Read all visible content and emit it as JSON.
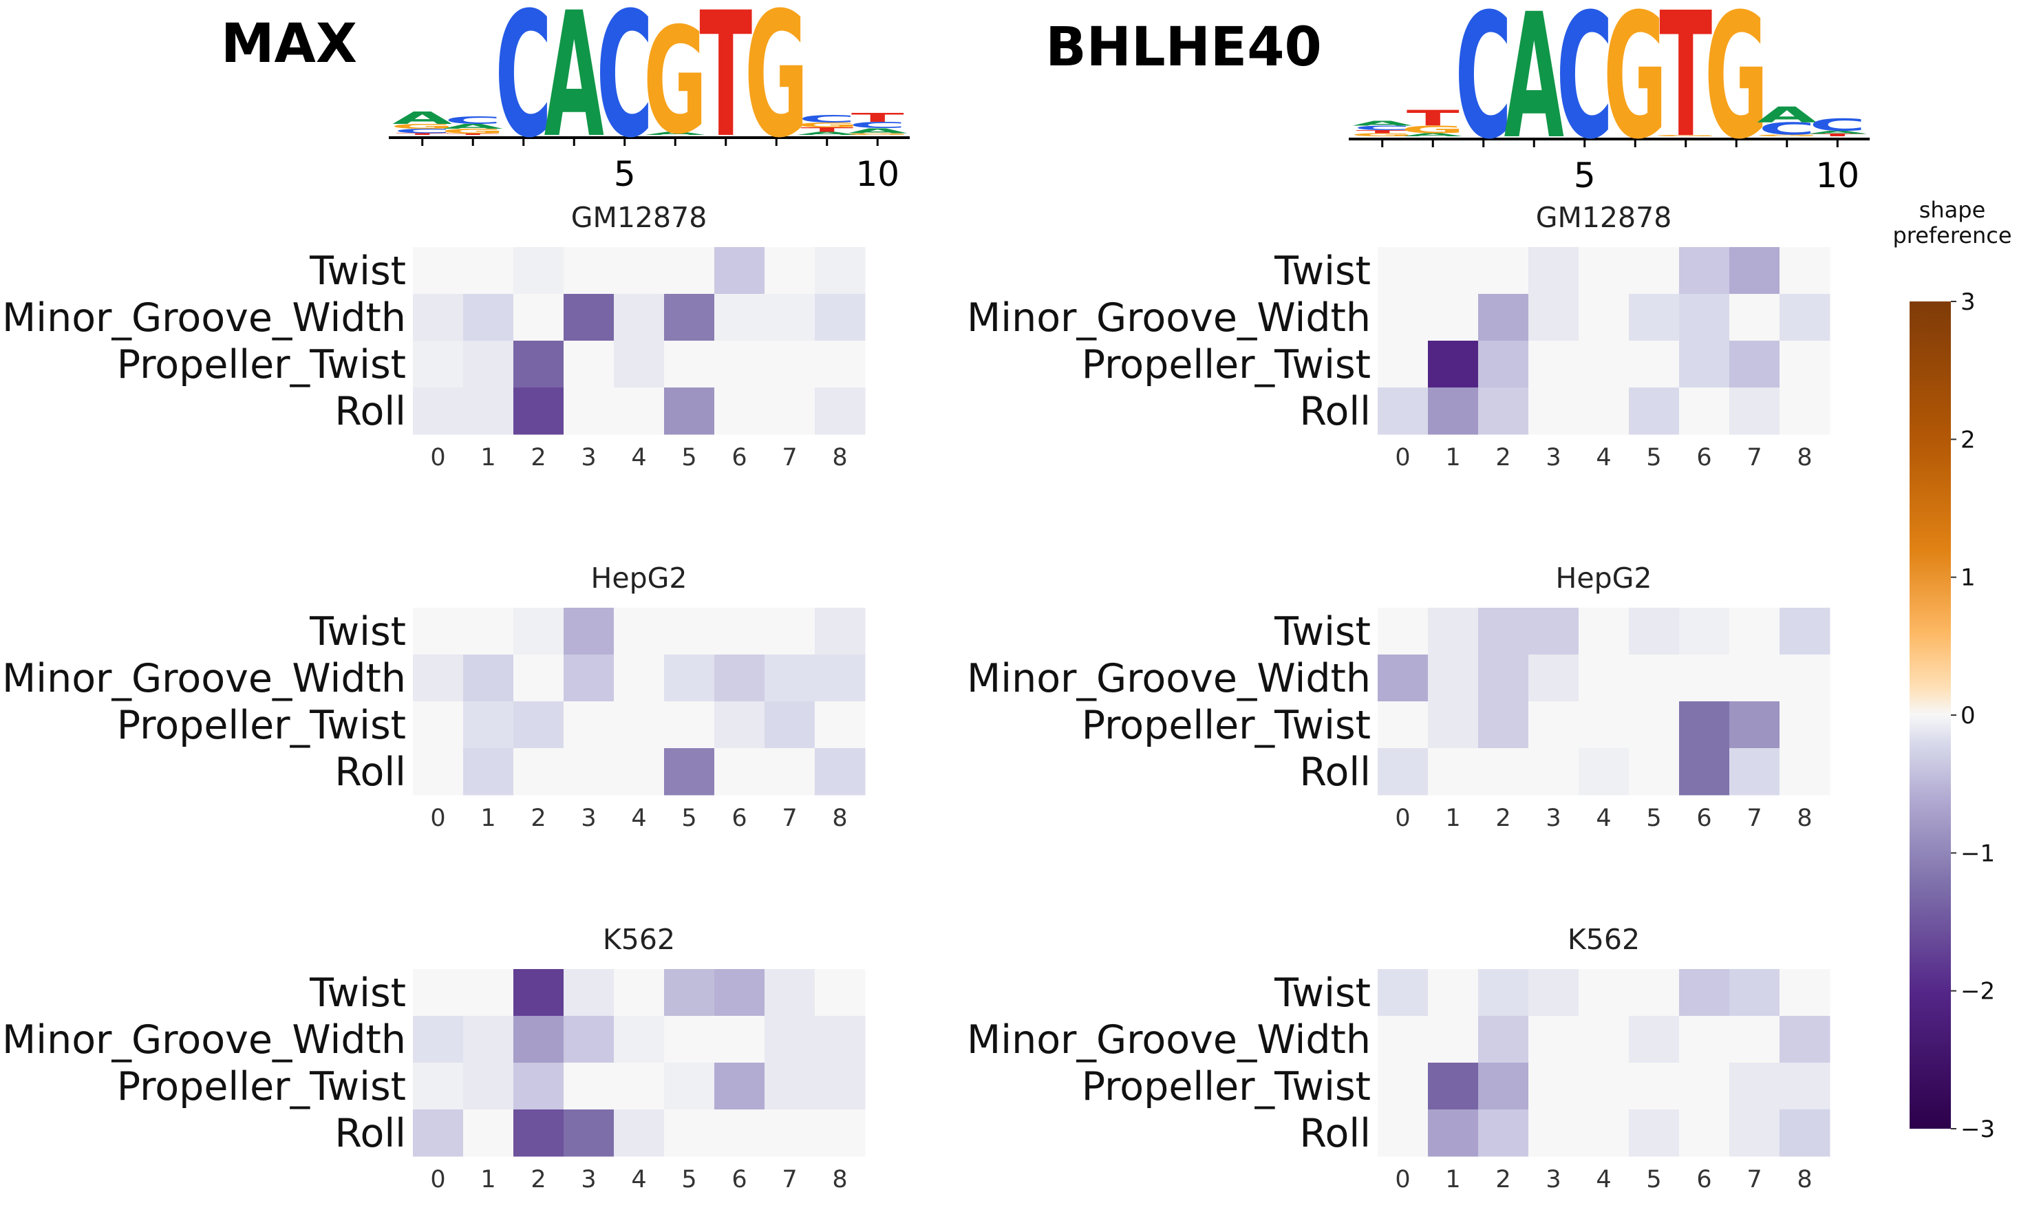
{
  "logos": [
    {
      "tf": "MAX",
      "letters": [
        {
          "pos": 1,
          "stack": [
            [
              "A",
              0.2
            ],
            [
              "G",
              0.08
            ],
            [
              "C",
              0.07
            ],
            [
              "T",
              0.03
            ]
          ]
        },
        {
          "pos": 2,
          "stack": [
            [
              "C",
              0.12
            ],
            [
              "G",
              0.08
            ],
            [
              "A",
              0.08
            ],
            [
              "T",
              0.02
            ]
          ]
        },
        {
          "pos": 3,
          "stack": [
            [
              "C",
              2.0
            ]
          ]
        },
        {
          "pos": 4,
          "stack": [
            [
              "A",
              2.0
            ]
          ]
        },
        {
          "pos": 5,
          "stack": [
            [
              "C",
              2.0
            ]
          ]
        },
        {
          "pos": 6,
          "stack": [
            [
              "G",
              1.7
            ],
            [
              "A",
              0.05
            ]
          ]
        },
        {
          "pos": 7,
          "stack": [
            [
              "T",
              2.0
            ]
          ]
        },
        {
          "pos": 8,
          "stack": [
            [
              "G",
              2.0
            ]
          ]
        },
        {
          "pos": 9,
          "stack": [
            [
              "C",
              0.12
            ],
            [
              "G",
              0.08
            ],
            [
              "T",
              0.07
            ],
            [
              "A",
              0.05
            ]
          ]
        },
        {
          "pos": 10,
          "stack": [
            [
              "T",
              0.14
            ],
            [
              "C",
              0.1
            ],
            [
              "A",
              0.08
            ],
            [
              "G",
              0.03
            ]
          ]
        }
      ],
      "ticks": [
        "5",
        "10"
      ]
    },
    {
      "tf": "BHLHE40",
      "letters": [
        {
          "pos": 1,
          "stack": [
            [
              "A",
              0.08
            ],
            [
              "C",
              0.07
            ],
            [
              "G",
              0.05
            ],
            [
              "T",
              0.05
            ]
          ]
        },
        {
          "pos": 2,
          "stack": [
            [
              "T",
              0.25
            ],
            [
              "G",
              0.12
            ],
            [
              "A",
              0.05
            ]
          ]
        },
        {
          "pos": 3,
          "stack": [
            [
              "C",
              2.0
            ]
          ]
        },
        {
          "pos": 4,
          "stack": [
            [
              "A",
              2.0
            ]
          ]
        },
        {
          "pos": 5,
          "stack": [
            [
              "C",
              2.0
            ]
          ]
        },
        {
          "pos": 6,
          "stack": [
            [
              "G",
              2.0
            ]
          ]
        },
        {
          "pos": 7,
          "stack": [
            [
              "T",
              2.0
            ],
            [
              "G",
              0.02
            ]
          ]
        },
        {
          "pos": 8,
          "stack": [
            [
              "G",
              2.0
            ]
          ]
        },
        {
          "pos": 9,
          "stack": [
            [
              "A",
              0.25
            ],
            [
              "C",
              0.2
            ],
            [
              "G",
              0.03
            ]
          ]
        },
        {
          "pos": 10,
          "stack": [
            [
              "C",
              0.2
            ],
            [
              "A",
              0.05
            ],
            [
              "T",
              0.04
            ]
          ]
        }
      ],
      "ticks": [
        "5",
        "10"
      ]
    }
  ],
  "nucleotide_colors": {
    "A": "#109648",
    "C": "#255ae6",
    "G": "#f7a21b",
    "T": "#e5261a"
  },
  "chart_data": [
    {
      "type": "heatmap",
      "tf": "MAX",
      "title": "GM12878",
      "rows": [
        "Twist",
        "Minor_Groove_Width",
        "Propeller_Twist",
        "Roll"
      ],
      "columns": [
        "0",
        "1",
        "2",
        "3",
        "4",
        "5",
        "6",
        "7",
        "8"
      ],
      "values": [
        [
          0.0,
          0.0,
          -0.05,
          0.0,
          0.0,
          0.0,
          -0.35,
          0.0,
          -0.05
        ],
        [
          -0.1,
          -0.2,
          0.0,
          -1.35,
          -0.1,
          -1.1,
          -0.05,
          -0.05,
          -0.15
        ],
        [
          -0.05,
          -0.1,
          -1.35,
          0.0,
          -0.1,
          0.0,
          0.0,
          0.0,
          0.0
        ],
        [
          -0.1,
          -0.1,
          -1.65,
          0.0,
          0.0,
          -0.85,
          0.0,
          0.0,
          -0.1
        ]
      ]
    },
    {
      "type": "heatmap",
      "tf": "MAX",
      "title": "HepG2",
      "rows": [
        "Twist",
        "Minor_Groove_Width",
        "Propeller_Twist",
        "Roll"
      ],
      "columns": [
        "0",
        "1",
        "2",
        "3",
        "4",
        "5",
        "6",
        "7",
        "8"
      ],
      "values": [
        [
          0.0,
          0.0,
          -0.05,
          -0.55,
          0.0,
          0.0,
          0.0,
          0.0,
          -0.1
        ],
        [
          -0.1,
          -0.25,
          0.0,
          -0.35,
          0.0,
          -0.15,
          -0.3,
          -0.15,
          -0.15
        ],
        [
          0.0,
          -0.15,
          -0.2,
          0.0,
          0.0,
          0.0,
          -0.1,
          -0.2,
          0.0
        ],
        [
          0.0,
          -0.2,
          0.0,
          0.0,
          0.0,
          -1.05,
          0.0,
          0.0,
          -0.2
        ]
      ]
    },
    {
      "type": "heatmap",
      "tf": "MAX",
      "title": "K562",
      "rows": [
        "Twist",
        "Minor_Groove_Width",
        "Propeller_Twist",
        "Roll"
      ],
      "columns": [
        "0",
        "1",
        "2",
        "3",
        "4",
        "5",
        "6",
        "7",
        "8"
      ],
      "values": [
        [
          0.0,
          0.0,
          -1.75,
          -0.1,
          0.0,
          -0.45,
          -0.55,
          -0.1,
          0.0
        ],
        [
          -0.15,
          -0.1,
          -0.75,
          -0.35,
          -0.05,
          0.0,
          0.0,
          -0.1,
          -0.1
        ],
        [
          -0.05,
          -0.1,
          -0.35,
          0.0,
          0.0,
          -0.05,
          -0.6,
          -0.1,
          -0.1
        ],
        [
          -0.3,
          0.0,
          -1.55,
          -1.25,
          -0.1,
          0.0,
          0.0,
          0.0,
          0.0
        ]
      ]
    },
    {
      "type": "heatmap",
      "tf": "BHLHE40",
      "title": "GM12878",
      "rows": [
        "Twist",
        "Minor_Groove_Width",
        "Propeller_Twist",
        "Roll"
      ],
      "columns": [
        "0",
        "1",
        "2",
        "3",
        "4",
        "5",
        "6",
        "7",
        "8"
      ],
      "values": [
        [
          0.0,
          0.0,
          0.0,
          -0.1,
          0.0,
          0.0,
          -0.35,
          -0.6,
          0.0
        ],
        [
          0.0,
          0.0,
          -0.6,
          -0.1,
          0.0,
          -0.15,
          -0.2,
          0.0,
          -0.15
        ],
        [
          0.0,
          -2.05,
          -0.4,
          0.0,
          0.0,
          0.0,
          -0.2,
          -0.4,
          0.0
        ],
        [
          -0.2,
          -0.8,
          -0.3,
          0.0,
          0.0,
          -0.2,
          0.0,
          -0.1,
          0.0
        ]
      ]
    },
    {
      "type": "heatmap",
      "tf": "BHLHE40",
      "title": "HepG2",
      "rows": [
        "Twist",
        "Minor_Groove_Width",
        "Propeller_Twist",
        "Roll"
      ],
      "columns": [
        "0",
        "1",
        "2",
        "3",
        "4",
        "5",
        "6",
        "7",
        "8"
      ],
      "values": [
        [
          0.0,
          -0.1,
          -0.3,
          -0.3,
          0.0,
          -0.1,
          -0.05,
          0.0,
          -0.2
        ],
        [
          -0.6,
          -0.1,
          -0.3,
          -0.1,
          0.0,
          0.0,
          0.0,
          0.0,
          0.0
        ],
        [
          0.0,
          -0.1,
          -0.3,
          0.0,
          0.0,
          0.0,
          -1.2,
          -0.85,
          0.0
        ],
        [
          -0.15,
          0.0,
          0.0,
          0.0,
          -0.05,
          0.0,
          -1.2,
          -0.2,
          0.0
        ]
      ]
    },
    {
      "type": "heatmap",
      "tf": "BHLHE40",
      "title": "K562",
      "rows": [
        "Twist",
        "Minor_Groove_Width",
        "Propeller_Twist",
        "Roll"
      ],
      "columns": [
        "0",
        "1",
        "2",
        "3",
        "4",
        "5",
        "6",
        "7",
        "8"
      ],
      "values": [
        [
          -0.15,
          0.0,
          -0.15,
          -0.1,
          0.0,
          0.0,
          -0.35,
          -0.25,
          0.0
        ],
        [
          0.0,
          0.0,
          -0.3,
          0.0,
          0.0,
          -0.1,
          0.0,
          0.0,
          -0.3
        ],
        [
          0.0,
          -1.35,
          -0.6,
          0.0,
          0.0,
          0.0,
          0.0,
          -0.1,
          -0.1
        ],
        [
          0.0,
          -0.7,
          -0.35,
          0.0,
          0.0,
          -0.1,
          0.0,
          -0.1,
          -0.25
        ]
      ]
    }
  ],
  "colorbar": {
    "title_lines": [
      "shape",
      "preference"
    ],
    "range": [
      -3,
      3
    ],
    "ticks": [
      "3",
      "2",
      "1",
      "0",
      "−1",
      "−2",
      "−3"
    ],
    "tick_values": [
      3,
      2,
      1,
      0,
      -1,
      -2,
      -3
    ],
    "stops": [
      {
        "v": -3,
        "color": "#2d004b"
      },
      {
        "v": -2,
        "color": "#542788"
      },
      {
        "v": -1.2,
        "color": "#8073ac"
      },
      {
        "v": -0.6,
        "color": "#b2abd2"
      },
      {
        "v": -0.2,
        "color": "#d8daeb"
      },
      {
        "v": 0,
        "color": "#f7f7f7"
      },
      {
        "v": 0.2,
        "color": "#fee0b6"
      },
      {
        "v": 0.6,
        "color": "#fdb863"
      },
      {
        "v": 1.2,
        "color": "#e08214"
      },
      {
        "v": 2,
        "color": "#b35806"
      },
      {
        "v": 3,
        "color": "#7f3b08"
      }
    ]
  }
}
